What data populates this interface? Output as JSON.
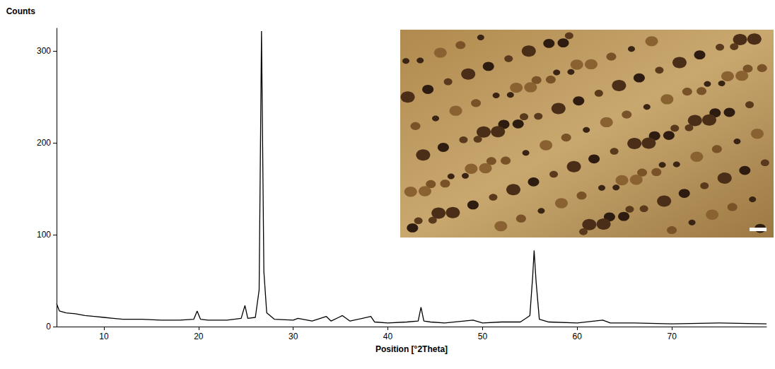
{
  "chart_data": {
    "type": "line",
    "x_label": "Position [°2Theta]",
    "y_label": "Counts",
    "color": "#000000",
    "grid": false,
    "x": [
      5.0,
      5.3,
      6.0,
      7.0,
      8.0,
      9.0,
      10.0,
      11.0,
      12.0,
      14.0,
      16.0,
      18.0,
      19.5,
      19.85,
      20.2,
      21.0,
      23.0,
      24.5,
      24.9,
      25.2,
      26.0,
      26.4,
      26.65,
      26.9,
      27.2,
      28.0,
      30.0,
      30.5,
      32.0,
      33.5,
      34.0,
      34.8,
      35.2,
      36.0,
      38.2,
      38.6,
      40.0,
      42.0,
      43.2,
      43.5,
      43.8,
      44.5,
      46.0,
      49.0,
      50.0,
      52.0,
      54.0,
      55.0,
      55.3,
      55.45,
      55.65,
      56.0,
      57.0,
      60.0,
      62.7,
      63.5,
      66.0,
      70.0,
      75.0,
      80.0
    ],
    "values": [
      25,
      17,
      15,
      14,
      12,
      11,
      10,
      9,
      8,
      8,
      7,
      7,
      8,
      17,
      8,
      7,
      7,
      9,
      23,
      9,
      10,
      40,
      322,
      60,
      15,
      8,
      7,
      9,
      6,
      11,
      6,
      10,
      12,
      6,
      11,
      5,
      4,
      5,
      6,
      21,
      6,
      5,
      4,
      7,
      4,
      5,
      5,
      12,
      55,
      83,
      50,
      8,
      5,
      4,
      7,
      4,
      4,
      3,
      4,
      3
    ],
    "xlim": [
      5,
      80
    ],
    "xticks": [
      10,
      20,
      30,
      40,
      50,
      60,
      70
    ],
    "ylim": [
      0,
      325
    ],
    "yticks": [
      0,
      100,
      200,
      300
    ]
  }
}
